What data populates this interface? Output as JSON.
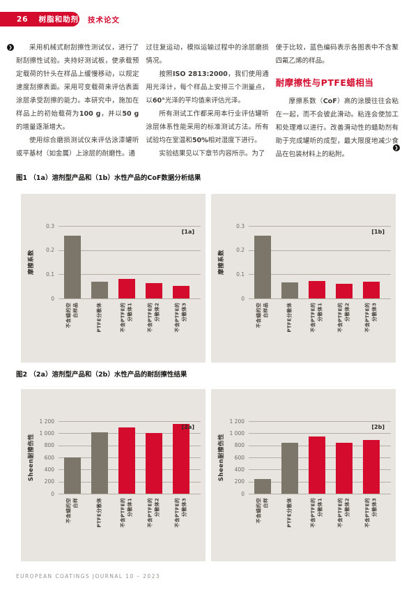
{
  "header": {
    "page_number": "26",
    "section": "树脂和助剂",
    "article_type": "技术论文"
  },
  "article": {
    "col1_paragraphs": [
      "采用机械式耐刮擦性测试仪，进行了耐刮擦性试验。夹持好测试板，使承载预定载荷的针头在样品上缓慢移动，以规定速度刮擦表面。采用可变载荷来评估表面涂层承受刮擦的能力。本研究中，施加在样品上的初始载荷为<b>100 g</b>，并以<b>50 g</b>的增量逐渐增大。",
      "使用综合磨损测试仪来评估涂漆罐听或平基材（如金属）上涂层的耐磨性。通"
    ],
    "col2_paragraphs": [
      "过往复运动，模拟运输过程中的涂层磨损情况。",
      "按照<b>ISO 2813:2000</b>，我们使用通用光泽计，每个样品上安排三个测量点，以<b>60°</b>光泽的平均值来评估光泽。",
      "所有测试工作都采用本行业评估罐听涂层体系性能采用的标准测试方法。所有试验均在室温和<b>50%</b>相对湿度下进行。",
      "实验结果见以下章节内容所示。为了"
    ],
    "col3_intro": "便于比较，蓝色编码表示各图表中不含聚四氟乙烯的样品。",
    "col3_heading": "耐摩擦性与PTFE蜡相当",
    "col3_paragraph": "摩擦系数（<b>CoF</b>）高的涂膜往往会粘在一起，而不会彼此滑动。粘连会使加工和处理难以进行。改善滑动性的蜡助剂有助于完成罐听的成型，最大限度地减少食品在包装材料上的粘附。"
  },
  "figure1": {
    "caption": "图1 （1a）溶剂型产品和（1b）水性产品的CoF数据分析结果"
  },
  "figure2": {
    "caption": "图2 （2a）溶剂型产品和（2b）水性产品的耐刮擦性结果"
  },
  "footer": {
    "text": "EUROPEAN COATINGS JOURNAL 10 – 2023"
  },
  "icons": {
    "continuation_arrow": "❯"
  },
  "colors": {
    "brand_red": "#d50b2e",
    "bar_gray": "#7b756a",
    "panel_bg": "#e8e5e0",
    "gridline": "#b3ada4"
  },
  "chart_data": [
    {
      "type": "bar",
      "tag": "[1a]",
      "ylabel": "摩擦系数",
      "xlabel": "",
      "ylim": [
        0,
        0.3
      ],
      "yticks": [
        0,
        0.1,
        0.2,
        0.3
      ],
      "ytick_labels": [
        "0",
        "0.1",
        "0.2",
        "0.3"
      ],
      "grid": true,
      "legend_position": "none",
      "categories": [
        "不含蜡的空\n白样品",
        "PTFE分散体",
        "不含PTFE的\n分散体1",
        "不含PTFE的\n分散体2",
        "不含PTFE的\n分散体3"
      ],
      "values": [
        0.26,
        0.07,
        0.08,
        0.064,
        0.053
      ],
      "bar_colors": [
        "bar_gray",
        "bar_gray",
        "brand_red",
        "brand_red",
        "brand_red"
      ]
    },
    {
      "type": "bar",
      "tag": "[1b]",
      "ylabel": "摩擦系数",
      "xlabel": "",
      "ylim": [
        0,
        0.3
      ],
      "yticks": [
        0,
        0.1,
        0.2,
        0.3
      ],
      "ytick_labels": [
        "0",
        "0.1",
        "0.2",
        "0.3"
      ],
      "grid": true,
      "legend_position": "none",
      "categories": [
        "不含蜡的空\n白样品",
        "PTFE分散体",
        "不含PTFE的\n分散体1",
        "不含PTFE的\n分散体2",
        "不含PTFE的\n分散体3"
      ],
      "values": [
        0.26,
        0.065,
        0.073,
        0.06,
        0.07
      ],
      "bar_colors": [
        "bar_gray",
        "bar_gray",
        "brand_red",
        "brand_red",
        "brand_red"
      ]
    },
    {
      "type": "bar",
      "tag": "[2a]",
      "ylabel": "Sheen耐擦伤性",
      "xlabel": "",
      "ylim": [
        0,
        1200
      ],
      "yticks": [
        0,
        200,
        400,
        600,
        800,
        1000,
        1200
      ],
      "ytick_labels": [
        "0",
        "200",
        "400",
        "600",
        "800",
        "1 000",
        "1 200"
      ],
      "grid": true,
      "legend_position": "none",
      "categories": [
        "不含蜡的空\n白样",
        "PTFE分散体",
        "不含PTFE的\n分散体1",
        "不含PTFE的\n分散体2",
        "不含PTFE的\n分散体3"
      ],
      "values": [
        600,
        1020,
        1100,
        1000,
        1150
      ],
      "bar_colors": [
        "bar_gray",
        "bar_gray",
        "brand_red",
        "brand_red",
        "brand_red"
      ]
    },
    {
      "type": "bar",
      "tag": "[2b]",
      "ylabel": "Sheen耐擦伤性",
      "xlabel": "",
      "ylim": [
        0,
        1200
      ],
      "yticks": [
        0,
        200,
        400,
        600,
        800,
        1000,
        1200
      ],
      "ytick_labels": [
        "0",
        "200",
        "400",
        "600",
        "800",
        "1 000",
        "1 200"
      ],
      "grid": true,
      "legend_position": "none",
      "categories": [
        "不含蜡的空\n白样",
        "PTFE分散体",
        "不含PTFE的\n分散体1",
        "不含PTFE的\n分散体2",
        "不含PTFE的\n分散体3"
      ],
      "values": [
        240,
        845,
        950,
        840,
        890
      ],
      "bar_colors": [
        "bar_gray",
        "bar_gray",
        "brand_red",
        "brand_red",
        "brand_red"
      ]
    }
  ]
}
